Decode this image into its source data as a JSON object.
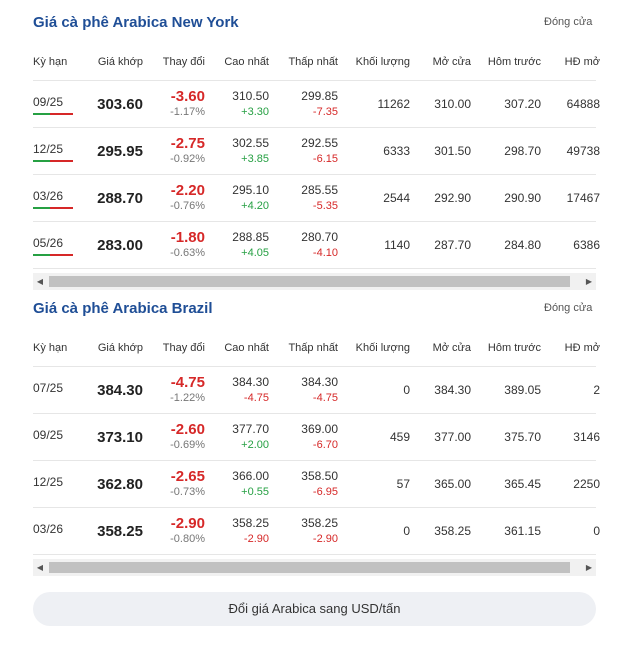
{
  "ny": {
    "title": "Giá cà phê Arabica New York",
    "close_label": "Đóng cửa",
    "headers": [
      "Kỳ hạn",
      "Giá khớp",
      "Thay đổi",
      "Cao nhất",
      "Thấp nhất",
      "Khối lượng",
      "Mở cửa",
      "Hôm trước",
      "HĐ mở"
    ],
    "rows": [
      {
        "term": "09/25",
        "price": "303.60",
        "chg": "-3.60",
        "pct": "-1.17%",
        "high": "310.50",
        "high_chg": "+3.30",
        "low": "299.85",
        "low_chg": "-7.35",
        "vol": "11262",
        "open": "310.00",
        "prev": "307.20",
        "oi": "64888"
      },
      {
        "term": "12/25",
        "price": "295.95",
        "chg": "-2.75",
        "pct": "-0.92%",
        "high": "302.55",
        "high_chg": "+3.85",
        "low": "292.55",
        "low_chg": "-6.15",
        "vol": "6333",
        "open": "301.50",
        "prev": "298.70",
        "oi": "49738"
      },
      {
        "term": "03/26",
        "price": "288.70",
        "chg": "-2.20",
        "pct": "-0.76%",
        "high": "295.10",
        "high_chg": "+4.20",
        "low": "285.55",
        "low_chg": "-5.35",
        "vol": "2544",
        "open": "292.90",
        "prev": "290.90",
        "oi": "17467"
      },
      {
        "term": "05/26",
        "price": "283.00",
        "chg": "-1.80",
        "pct": "-0.63%",
        "high": "288.85",
        "high_chg": "+4.05",
        "low": "280.70",
        "low_chg": "-4.10",
        "vol": "1140",
        "open": "287.70",
        "prev": "284.80",
        "oi": "6386"
      }
    ]
  },
  "br": {
    "title": "Giá cà phê Arabica Brazil",
    "close_label": "Đóng cửa",
    "headers": [
      "Kỳ hạn",
      "Giá khớp",
      "Thay đổi",
      "Cao nhất",
      "Thấp nhất",
      "Khối lượng",
      "Mở cửa",
      "Hôm trước",
      "HĐ mở"
    ],
    "rows": [
      {
        "term": "07/25",
        "price": "384.30",
        "chg": "-4.75",
        "pct": "-1.22%",
        "high": "384.30",
        "high_chg": "-4.75",
        "low": "384.30",
        "low_chg": "-4.75",
        "vol": "0",
        "open": "384.30",
        "prev": "389.05",
        "oi": "2"
      },
      {
        "term": "09/25",
        "price": "373.10",
        "chg": "-2.60",
        "pct": "-0.69%",
        "high": "377.70",
        "high_chg": "+2.00",
        "low": "369.00",
        "low_chg": "-6.70",
        "vol": "459",
        "open": "377.00",
        "prev": "375.70",
        "oi": "3146"
      },
      {
        "term": "12/25",
        "price": "362.80",
        "chg": "-2.65",
        "pct": "-0.73%",
        "high": "366.00",
        "high_chg": "+0.55",
        "low": "358.50",
        "low_chg": "-6.95",
        "vol": "57",
        "open": "365.00",
        "prev": "365.45",
        "oi": "2250"
      },
      {
        "term": "03/26",
        "price": "358.25",
        "chg": "-2.90",
        "pct": "-0.80%",
        "high": "358.25",
        "high_chg": "-2.90",
        "low": "358.25",
        "low_chg": "-2.90",
        "vol": "0",
        "open": "358.25",
        "prev": "361.15",
        "oi": "0"
      }
    ]
  },
  "scroll_left": "◀",
  "scroll_right": "▶",
  "cta_label": "Đổi giá Arabica sang USD/tấn",
  "colors": {
    "title": "#1f4e96",
    "up": "#26a043",
    "down": "#d62828"
  }
}
